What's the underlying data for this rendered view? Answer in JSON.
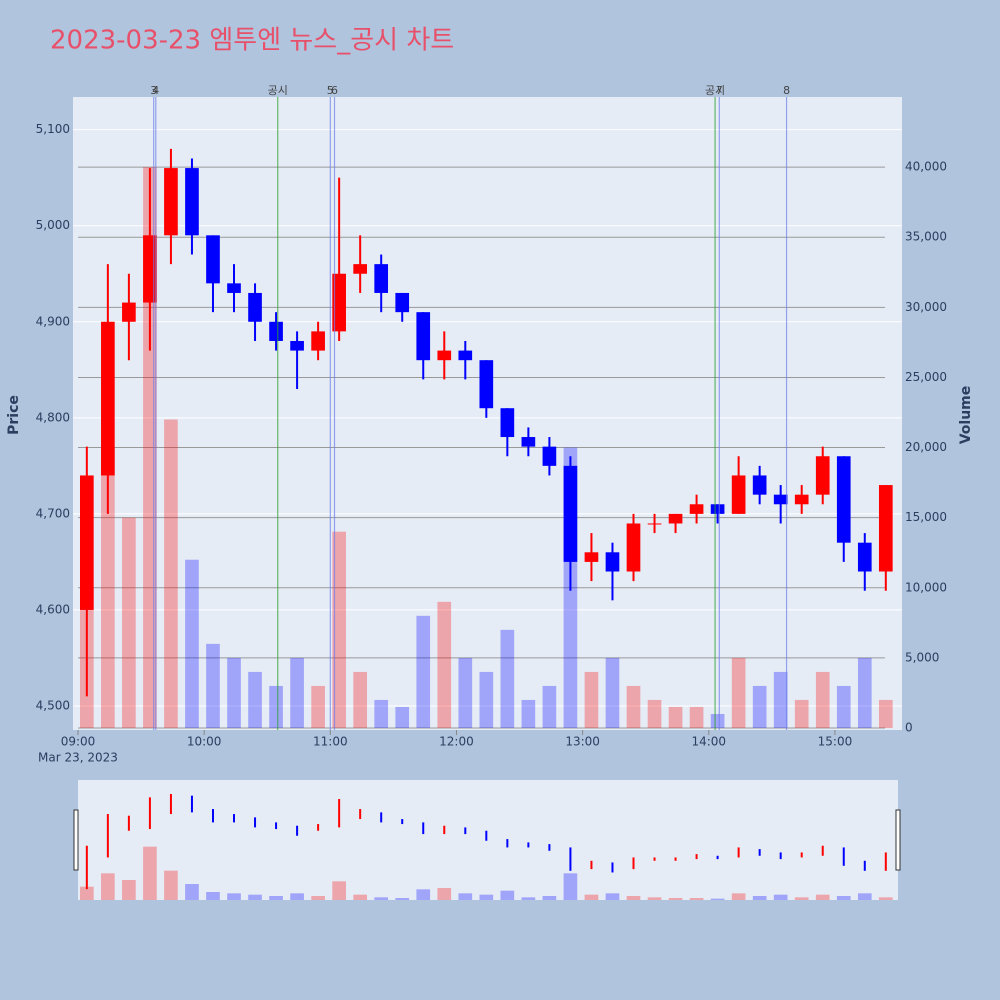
{
  "chart_data": {
    "type": "candlestick",
    "title": "2023-03-23 엠투엔 뉴스_공시 차트",
    "y_label": "Price",
    "y2_label": "Volume",
    "x_sublabel": "Mar 23, 2023",
    "increasing_color": "#ff0000",
    "decreasing_color": "#0000ff",
    "xlim": [
      "09:00",
      "15:30"
    ],
    "xticks": [
      "09:00",
      "10:00",
      "11:00",
      "12:00",
      "13:00",
      "14:00",
      "15:00"
    ],
    "ylim": [
      4475,
      5134
    ],
    "yticks": [
      {
        "value": 4500,
        "label": "4,500"
      },
      {
        "value": 4600,
        "label": "4,600"
      },
      {
        "value": 4700,
        "label": "4,700"
      },
      {
        "value": 4800,
        "label": "4,800"
      },
      {
        "value": 4900,
        "label": "4,900"
      },
      {
        "value": 5000,
        "label": "5,000"
      },
      {
        "value": 5100,
        "label": "5,100"
      }
    ],
    "y2lim": [
      0,
      45000
    ],
    "y2ticks": [
      0,
      {
        "value": 5000,
        "label": "5,000"
      },
      {
        "value": 10000,
        "label": "10,000"
      },
      {
        "value": 15000,
        "label": "15,000"
      },
      {
        "value": 20000,
        "label": "20,000"
      },
      {
        "value": 25000,
        "label": "25,000"
      },
      {
        "value": 30000,
        "label": "30,000"
      },
      {
        "value": 35000,
        "label": "35,000"
      },
      {
        "value": 40000,
        "label": "40,000"
      }
    ],
    "annotations": [
      {
        "x": "09:36",
        "label": "3",
        "color": "#6f7fe8"
      },
      {
        "x": "09:37",
        "label": "4",
        "color": "#6f7fe8"
      },
      {
        "x": "10:35",
        "label": "공시",
        "color": "#2ca02c"
      },
      {
        "x": "11:00",
        "label": "5",
        "color": "#6f7fe8"
      },
      {
        "x": "11:02",
        "label": "6",
        "color": "#6f7fe8"
      },
      {
        "x": "14:03",
        "label": "공시",
        "color": "#2ca02c"
      },
      {
        "x": "14:05",
        "label": "7",
        "color": "#6f7fe8"
      },
      {
        "x": "14:37",
        "label": "8",
        "color": "#6f7fe8"
      }
    ],
    "x": [
      "09:00",
      "09:10",
      "09:20",
      "09:30",
      "09:40",
      "09:50",
      "10:00",
      "10:10",
      "10:20",
      "10:30",
      "10:40",
      "10:50",
      "11:00",
      "11:10",
      "11:20",
      "11:30",
      "11:40",
      "11:50",
      "12:00",
      "12:10",
      "12:20",
      "12:30",
      "12:40",
      "12:50",
      "13:00",
      "13:10",
      "13:20",
      "13:30",
      "13:40",
      "13:50",
      "14:00",
      "14:10",
      "14:20",
      "14:30",
      "14:40",
      "14:50",
      "15:00",
      "15:10",
      "15:20"
    ],
    "open": [
      4600,
      4740,
      4900,
      4920,
      4990,
      5060,
      4990,
      4940,
      4930,
      4900,
      4880,
      4870,
      4890,
      4950,
      4960,
      4930,
      4910,
      4860,
      4870,
      4860,
      4810,
      4780,
      4770,
      4750,
      4650,
      4660,
      4640,
      4690,
      4690,
      4700,
      4710,
      4700,
      4740,
      4720,
      4710,
      4720,
      4760,
      4670,
      4640
    ],
    "high": [
      4770,
      4960,
      4950,
      5060,
      5080,
      5070,
      4990,
      4960,
      4940,
      4910,
      4890,
      4900,
      5050,
      4990,
      4970,
      4930,
      4910,
      4890,
      4880,
      4860,
      4810,
      4790,
      4780,
      4760,
      4680,
      4670,
      4700,
      4700,
      4700,
      4720,
      4710,
      4760,
      4750,
      4730,
      4730,
      4770,
      4760,
      4680,
      4730
    ],
    "low": [
      4510,
      4700,
      4860,
      4870,
      4960,
      4970,
      4910,
      4910,
      4880,
      4870,
      4830,
      4860,
      4880,
      4930,
      4910,
      4900,
      4840,
      4840,
      4840,
      4800,
      4760,
      4760,
      4740,
      4620,
      4630,
      4610,
      4630,
      4680,
      4680,
      4690,
      4690,
      4700,
      4710,
      4690,
      4700,
      4710,
      4650,
      4620,
      4620
    ],
    "close": [
      4740,
      4900,
      4920,
      4990,
      5060,
      4990,
      4940,
      4930,
      4900,
      4880,
      4870,
      4890,
      4950,
      4960,
      4930,
      4910,
      4860,
      4870,
      4860,
      4810,
      4780,
      4770,
      4750,
      4650,
      4660,
      4640,
      4690,
      4690,
      4700,
      4710,
      4700,
      4740,
      4720,
      4710,
      4720,
      4760,
      4670,
      4640,
      4730
    ],
    "volume": [
      10000,
      20000,
      15000,
      40000,
      22000,
      12000,
      6000,
      5000,
      4000,
      3000,
      5000,
      3000,
      14000,
      4000,
      2000,
      1500,
      8000,
      9000,
      5000,
      4000,
      7000,
      2000,
      3000,
      20000,
      4000,
      5000,
      3000,
      2000,
      1500,
      1500,
      1000,
      5000,
      3000,
      4000,
      2000,
      4000,
      3000,
      5000,
      2000
    ]
  }
}
